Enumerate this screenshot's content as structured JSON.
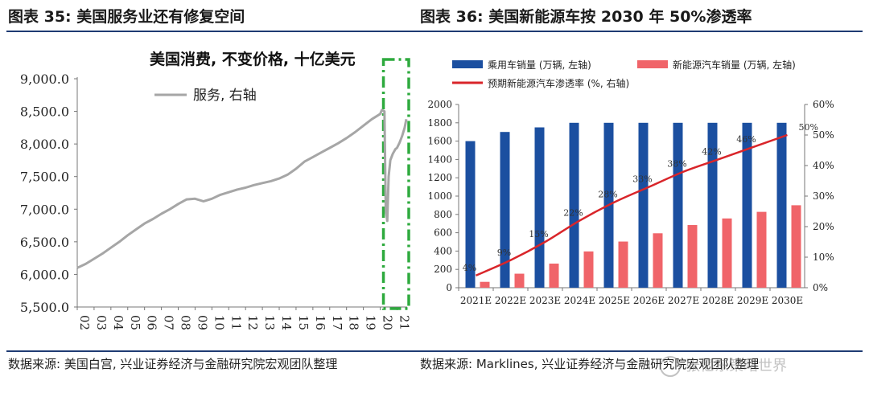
{
  "header": {
    "left_title": "图表 35: 美国服务业还有修复空间",
    "right_title": "图表 36: 美国新能源车按 2030 年 50%渗透率"
  },
  "footer": {
    "left_source": "数据来源: 美国白宫, 兴业证券经济与金融研究院宏观团队整理",
    "right_source": "数据来源: Marklines, 兴业证券经济与金融研究院宏观团队整理"
  },
  "watermark": {
    "text": "张忆东策略世界"
  },
  "colors": {
    "line_gray": "#a6a6a6",
    "bar_blue": "#1b4fa0",
    "bar_red": "#f06469",
    "pen_red": "#d9252a",
    "highlight_green": "#2eaa3e"
  },
  "chart_data": [
    {
      "type": "line",
      "title": "美国消费, 不变价格, 十亿美元",
      "legend": "服务, 右轴",
      "legend_position": "top-left",
      "ylim": [
        5500,
        9000
      ],
      "y_ticks": [
        "9,000.0",
        "8,500.0",
        "8,000.0",
        "7,500.0",
        "7,000.0",
        "6,500.0",
        "6,000.0",
        "5,500.0"
      ],
      "x_ticks": [
        "02",
        "03",
        "04",
        "05",
        "06",
        "07",
        "08",
        "09",
        "10",
        "11",
        "12",
        "13",
        "14",
        "15",
        "16",
        "17",
        "18",
        "19",
        "20",
        "21"
      ],
      "x_range": [
        2002,
        2021.6
      ],
      "highlight_range": [
        2020,
        2021.6
      ],
      "series": [
        {
          "name": "服务, 右轴",
          "x": [
            2002.0,
            2002.5,
            2003.0,
            2003.5,
            2004.0,
            2004.5,
            2005.0,
            2005.5,
            2006.0,
            2006.5,
            2007.0,
            2007.5,
            2008.0,
            2008.5,
            2009.0,
            2009.5,
            2010.0,
            2010.5,
            2011.0,
            2011.5,
            2012.0,
            2012.5,
            2013.0,
            2013.5,
            2014.0,
            2014.5,
            2015.0,
            2015.5,
            2016.0,
            2016.5,
            2017.0,
            2017.5,
            2018.0,
            2018.5,
            2019.0,
            2019.5,
            2020.0,
            2020.1,
            2020.25,
            2020.33,
            2020.42,
            2020.5,
            2020.6,
            2020.75,
            2020.9,
            2021.0,
            2021.15,
            2021.3,
            2021.45,
            2021.55
          ],
          "y": [
            6100,
            6160,
            6240,
            6320,
            6410,
            6500,
            6600,
            6690,
            6780,
            6850,
            6930,
            7000,
            7080,
            7150,
            7160,
            7120,
            7160,
            7220,
            7260,
            7300,
            7330,
            7370,
            7400,
            7430,
            7470,
            7530,
            7620,
            7730,
            7800,
            7870,
            7940,
            8010,
            8090,
            8180,
            8280,
            8380,
            8460,
            8520,
            8500,
            7000,
            6820,
            7500,
            7750,
            7850,
            7920,
            7940,
            8020,
            8120,
            8250,
            8380
          ]
        }
      ]
    },
    {
      "type": "bar",
      "title": "",
      "categories": [
        "2021E",
        "2022E",
        "2023E",
        "2024E",
        "2025E",
        "2026E",
        "2027E",
        "2028E",
        "2029E",
        "2030E"
      ],
      "ylim": [
        0,
        2000
      ],
      "y2lim": [
        0,
        60
      ],
      "y_ticks": [
        "2000",
        "1800",
        "1600",
        "1400",
        "1200",
        "1000",
        "800",
        "600",
        "400",
        "200",
        "0"
      ],
      "y2_ticks": [
        "60%",
        "50%",
        "40%",
        "30%",
        "20%",
        "10%",
        "0%"
      ],
      "legend_position": "top",
      "series": [
        {
          "name": "乘用车销量 (万辆, 左轴)",
          "kind": "bar",
          "axis": "left",
          "values": [
            1600,
            1700,
            1750,
            1800,
            1800,
            1800,
            1800,
            1800,
            1800,
            1800
          ]
        },
        {
          "name": "新能源汽车销量 (万辆, 左轴)",
          "kind": "bar",
          "axis": "left",
          "values": [
            64,
            153,
            263,
            396,
            504,
            594,
            684,
            756,
            828,
            900
          ]
        },
        {
          "name": "预期新能源汽车渗透率 (%, 右轴)",
          "kind": "line",
          "axis": "right",
          "values": [
            4,
            9,
            15,
            22,
            28,
            33,
            38,
            42,
            46,
            50
          ],
          "labels": [
            "4%",
            "9%",
            "15%",
            "22%",
            "28%",
            "33%",
            "38%",
            "42%",
            "46%",
            "50%"
          ]
        }
      ]
    }
  ]
}
